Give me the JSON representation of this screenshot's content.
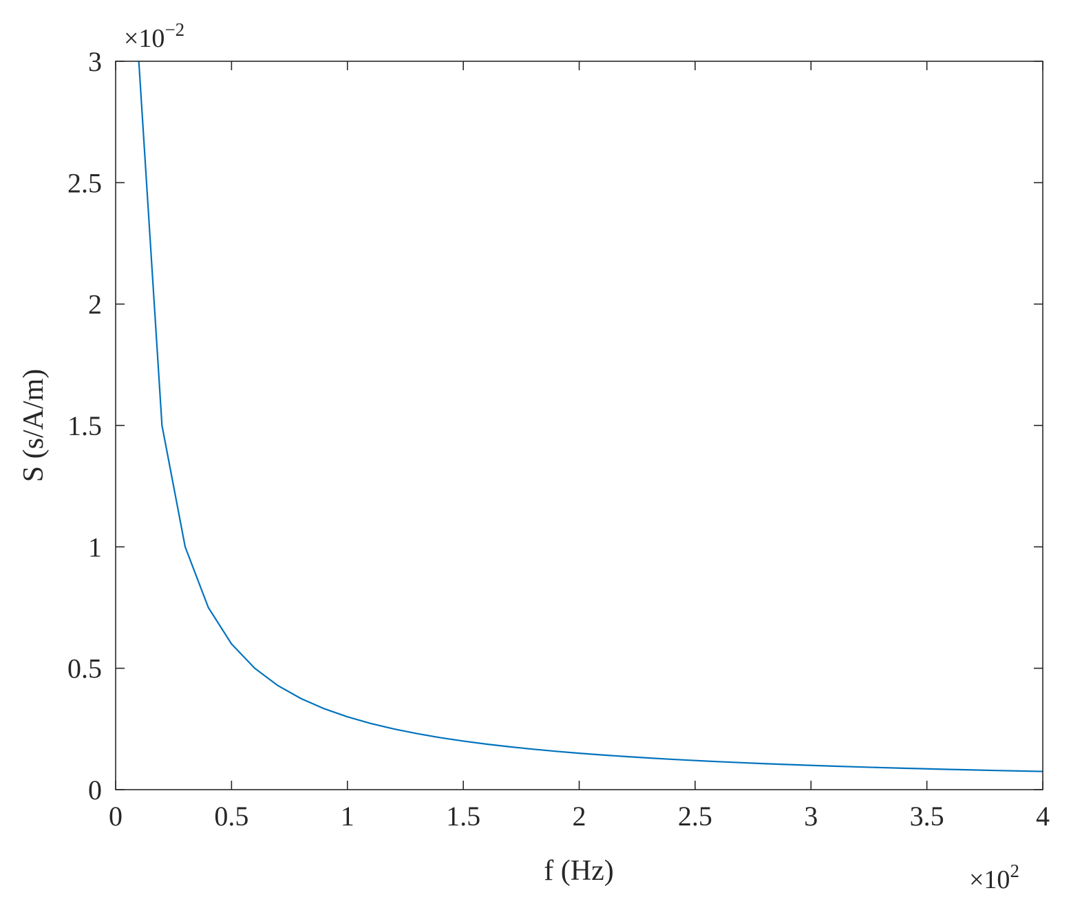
{
  "chart_data": {
    "type": "line",
    "title": "",
    "xlabel": "f (Hz)",
    "ylabel": "S (s/A/m)",
    "x_multiplier": "×10",
    "x_multiplier_exp": "2",
    "y_multiplier": "×10",
    "y_multiplier_exp": "−2",
    "xlim": [
      0,
      400
    ],
    "ylim": [
      0,
      0.03
    ],
    "x_ticks": [
      0,
      50,
      100,
      150,
      200,
      250,
      300,
      350,
      400
    ],
    "y_ticks": [
      0,
      0.005,
      0.01,
      0.015,
      0.02,
      0.025,
      0.03
    ],
    "x_tick_labels": [
      "0",
      "0.5",
      "1",
      "1.5",
      "2",
      "2.5",
      "3",
      "3.5",
      "4"
    ],
    "y_tick_labels": [
      "0",
      "0.5",
      "1",
      "1.5",
      "2",
      "2.5",
      "3"
    ],
    "grid": false,
    "line_color": "#0072BD",
    "series": [
      {
        "x": [
          10,
          20,
          30,
          40,
          50,
          60,
          70,
          80,
          90,
          100,
          110,
          120,
          130,
          140,
          150,
          160,
          170,
          180,
          190,
          200,
          210,
          220,
          230,
          240,
          250,
          260,
          270,
          280,
          290,
          300,
          310,
          320,
          330,
          340,
          350,
          360,
          370,
          380,
          390,
          400
        ],
        "y": [
          0.03,
          0.015,
          0.01,
          0.0075,
          0.006,
          0.005,
          0.004286,
          0.00375,
          0.003333,
          0.003,
          0.002727,
          0.0025,
          0.002308,
          0.002143,
          0.002,
          0.001875,
          0.001765,
          0.001667,
          0.001579,
          0.0015,
          0.001429,
          0.001364,
          0.001304,
          0.00125,
          0.0012,
          0.001154,
          0.001111,
          0.001071,
          0.001034,
          0.001,
          0.000968,
          0.000938,
          0.000909,
          0.000882,
          0.000857,
          0.000833,
          0.000811,
          0.000789,
          0.000769,
          0.00075
        ]
      }
    ]
  }
}
